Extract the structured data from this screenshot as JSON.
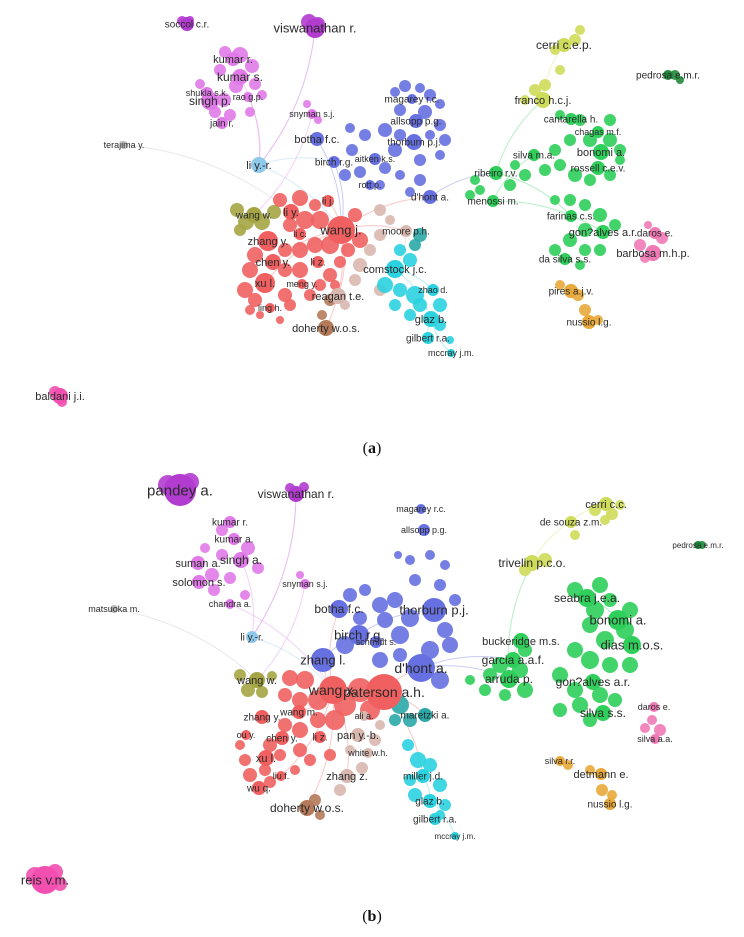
{
  "panel_a": {
    "caption_letter": "a",
    "nodes": [
      {
        "label": "soccol c.r.",
        "color": "#b23bd0"
      },
      {
        "label": "viswanathan r.",
        "color": "#b23bd0"
      },
      {
        "label": "kumar r.",
        "color": "#e07ae8"
      },
      {
        "label": "kumar s.",
        "color": "#e07ae8"
      },
      {
        "label": "shukla s.k.",
        "color": "#e07ae8"
      },
      {
        "label": "singh p.",
        "color": "#e07ae8"
      },
      {
        "label": "rao g.p.",
        "color": "#e07ae8"
      },
      {
        "label": "jain r.",
        "color": "#e07ae8"
      },
      {
        "label": "snyman s.j.",
        "color": "#e07ae8"
      },
      {
        "label": "terajima y.",
        "color": "#bcbcbc"
      },
      {
        "label": "li y.-r.",
        "color": "#8ec9ec"
      },
      {
        "label": "magarey r.c.",
        "color": "#6670e0"
      },
      {
        "label": "allsopp p.g.",
        "color": "#6670e0"
      },
      {
        "label": "botha f.c.",
        "color": "#6670e0"
      },
      {
        "label": "thorburn p.j.",
        "color": "#6670e0"
      },
      {
        "label": "aitken k.s.",
        "color": "#6670e0"
      },
      {
        "label": "birch r.g.",
        "color": "#6670e0"
      },
      {
        "label": "rott p.",
        "color": "#6670e0"
      },
      {
        "label": "d'hont a.",
        "color": "#6670e0"
      },
      {
        "label": "wang w.",
        "color": "#a5a545"
      },
      {
        "label": "li y.",
        "color": "#f06060"
      },
      {
        "label": "li j.",
        "color": "#f06060"
      },
      {
        "label": "li c.",
        "color": "#f06060"
      },
      {
        "label": "wang j.",
        "color": "#f06060"
      },
      {
        "label": "zhang y.",
        "color": "#f06060"
      },
      {
        "label": "chen y.",
        "color": "#f06060"
      },
      {
        "label": "li z.",
        "color": "#f06060"
      },
      {
        "label": "xu l.",
        "color": "#f06060"
      },
      {
        "label": "meng y.",
        "color": "#f06060"
      },
      {
        "label": "ling h.",
        "color": "#f06060"
      },
      {
        "label": "moore p.h.",
        "color": "#d9b8b0"
      },
      {
        "label": "comstock j.c.",
        "color": "#2bd2e0"
      },
      {
        "label": "reagan t.e.",
        "color": "#d9b8b0"
      },
      {
        "label": "zhao d.",
        "color": "#2bd2e0"
      },
      {
        "label": "doherty w.o.s.",
        "color": "#b57a5a"
      },
      {
        "label": "glaz b.",
        "color": "#2bd2e0"
      },
      {
        "label": "gilbert r.a.",
        "color": "#2bd2e0"
      },
      {
        "label": "mccray j.m.",
        "color": "#2bd2e0"
      },
      {
        "label": "cerri c.e.p.",
        "color": "#cfdb5a"
      },
      {
        "label": "pedrosa e.m.r.",
        "color": "#1f8a3a"
      },
      {
        "label": "franco h.c.j.",
        "color": "#cfdb5a"
      },
      {
        "label": "cantarella h.",
        "color": "#2ecf5a"
      },
      {
        "label": "chagas m.f.",
        "color": "#2ecf5a"
      },
      {
        "label": "bonomi a.",
        "color": "#2ecf5a"
      },
      {
        "label": "silva m.a.",
        "color": "#2ecf5a"
      },
      {
        "label": "rossell c.e.v.",
        "color": "#2ecf5a"
      },
      {
        "label": "ribeiro r.v.",
        "color": "#2ecf5a"
      },
      {
        "label": "menossi m.",
        "color": "#2ecf5a"
      },
      {
        "label": "farinas c.s.",
        "color": "#2ecf5a"
      },
      {
        "label": "gon?alves a.r.",
        "color": "#2ecf5a"
      },
      {
        "label": "da silva s.s.",
        "color": "#2ecf5a"
      },
      {
        "label": "daros e.",
        "color": "#f07ab5"
      },
      {
        "label": "barbosa m.h.p.",
        "color": "#f07ab5"
      },
      {
        "label": "pires a.j.v.",
        "color": "#e8a83a"
      },
      {
        "label": "nussio l.g.",
        "color": "#e8a83a"
      },
      {
        "label": "baldani j.i.",
        "color": "#f24fb0"
      }
    ]
  },
  "panel_b": {
    "caption_letter": "b",
    "nodes": [
      {
        "label": "pandey a.",
        "color": "#b23bd0"
      },
      {
        "label": "viswanathan r.",
        "color": "#b23bd0"
      },
      {
        "label": "kumar r.",
        "color": "#e07ae8"
      },
      {
        "label": "kumar a.",
        "color": "#e07ae8"
      },
      {
        "label": "singh a.",
        "color": "#e07ae8"
      },
      {
        "label": "suman a.",
        "color": "#e07ae8"
      },
      {
        "label": "solomon s.",
        "color": "#e07ae8"
      },
      {
        "label": "snyman s.j.",
        "color": "#e07ae8"
      },
      {
        "label": "chandra a.",
        "color": "#e07ae8"
      },
      {
        "label": "matsuoka m.",
        "color": "#bcbcbc"
      },
      {
        "label": "li y.-r.",
        "color": "#8ec9ec"
      },
      {
        "label": "magarey r.c.",
        "color": "#6670e0"
      },
      {
        "label": "allsopp p.g.",
        "color": "#6670e0"
      },
      {
        "label": "botha f.c.",
        "color": "#6670e0"
      },
      {
        "label": "thorburn p.j.",
        "color": "#6670e0"
      },
      {
        "label": "birch r.g.",
        "color": "#6670e0"
      },
      {
        "label": "schmidt s.",
        "color": "#6670e0"
      },
      {
        "label": "zhang l.",
        "color": "#6670e0"
      },
      {
        "label": "d'hont a.",
        "color": "#6670e0"
      },
      {
        "label": "wang w.",
        "color": "#a5a545"
      },
      {
        "label": "wang x.",
        "color": "#f06060"
      },
      {
        "label": "paterson a.h.",
        "color": "#f06060"
      },
      {
        "label": "wang m.",
        "color": "#f06060"
      },
      {
        "label": "zhang y.",
        "color": "#f06060"
      },
      {
        "label": "ou y.",
        "color": "#f06060"
      },
      {
        "label": "chen y.",
        "color": "#f06060"
      },
      {
        "label": "li z.",
        "color": "#f06060"
      },
      {
        "label": "xu l.",
        "color": "#f06060"
      },
      {
        "label": "liu f.",
        "color": "#f06060"
      },
      {
        "label": "wu q.",
        "color": "#f06060"
      },
      {
        "label": "ali a.",
        "color": "#d9b8b0"
      },
      {
        "label": "pan y.-b.",
        "color": "#d9b8b0"
      },
      {
        "label": "white w.h.",
        "color": "#d9b8b0"
      },
      {
        "label": "maretzki a.",
        "color": "#2aa8a8"
      },
      {
        "label": "zhang z.",
        "color": "#d9b8b0"
      },
      {
        "label": "miller j.d.",
        "color": "#2bd2e0"
      },
      {
        "label": "doherty w.o.s.",
        "color": "#b57a5a"
      },
      {
        "label": "glaz b.",
        "color": "#2bd2e0"
      },
      {
        "label": "gilbert r.a.",
        "color": "#2bd2e0"
      },
      {
        "label": "mccray j.m.",
        "color": "#2bd2e0"
      },
      {
        "label": "cerri c.c.",
        "color": "#cfdb5a"
      },
      {
        "label": "de souza z.m.",
        "color": "#cfdb5a"
      },
      {
        "label": "pedrosa e.m.r.",
        "color": "#1f8a3a"
      },
      {
        "label": "trivelin p.c.o.",
        "color": "#cfdb5a"
      },
      {
        "label": "seabra j.e.a.",
        "color": "#2ecf5a"
      },
      {
        "label": "bonomi a.",
        "color": "#2ecf5a"
      },
      {
        "label": "buckeridge m.s.",
        "color": "#2ecf5a"
      },
      {
        "label": "dias m.o.s.",
        "color": "#2ecf5a"
      },
      {
        "label": "garcia a.a.f.",
        "color": "#2ecf5a"
      },
      {
        "label": "arruda p.",
        "color": "#2ecf5a"
      },
      {
        "label": "gon?alves a.r.",
        "color": "#2ecf5a"
      },
      {
        "label": "silva s.s.",
        "color": "#2ecf5a"
      },
      {
        "label": "daros e.",
        "color": "#f07ab5"
      },
      {
        "label": "silva a.a.",
        "color": "#f07ab5"
      },
      {
        "label": "silva r.r.",
        "color": "#e8a83a"
      },
      {
        "label": "detmann e.",
        "color": "#e8a83a"
      },
      {
        "label": "nussio l.g.",
        "color": "#e8a83a"
      },
      {
        "label": "reis v.m.",
        "color": "#f24fb0"
      }
    ]
  }
}
